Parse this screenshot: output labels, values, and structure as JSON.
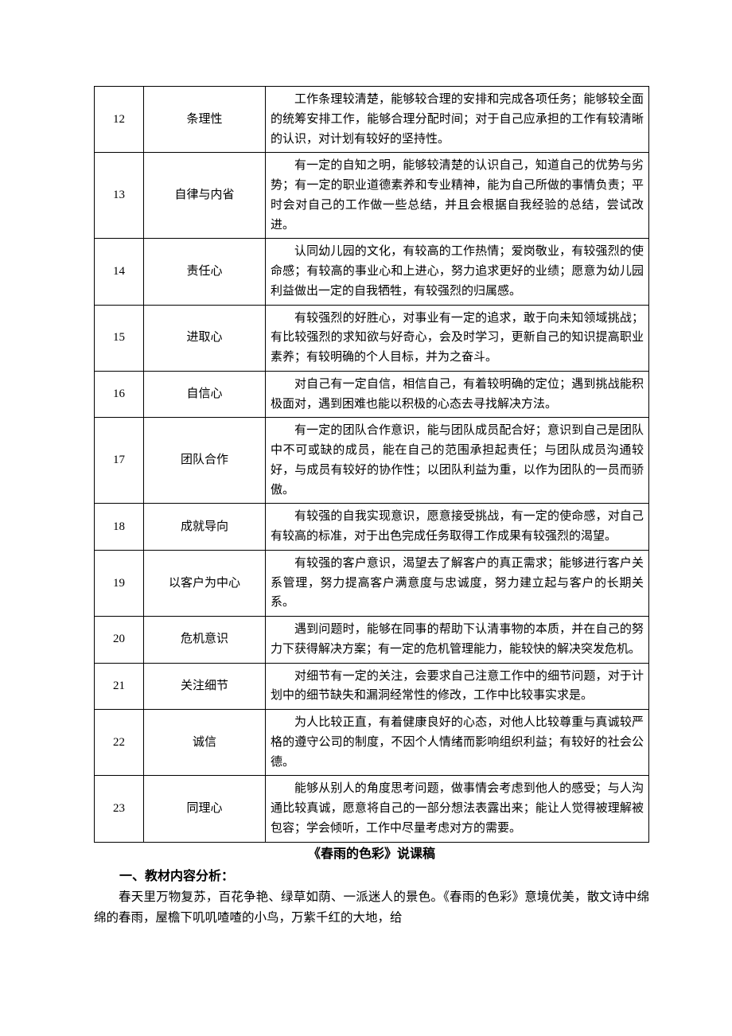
{
  "table": {
    "rows": [
      {
        "num": "12",
        "name": "条理性",
        "desc": "工作条理较清楚，能够较合理的安排和完成各项任务；能够较全面的统筹安排工作，能够合理分配时间；对于自己应承担的工作有较清晰的认识，对计划有较好的坚持性。"
      },
      {
        "num": "13",
        "name": "自律与内省",
        "desc": "有一定的自知之明，能够较清楚的认识自己，知道自己的优势与劣势；有一定的职业道德素养和专业精神，能为自己所做的事情负责；平时会对自己的工作做一些总结，并且会根据自我经验的总结，尝试改进。"
      },
      {
        "num": "14",
        "name": "责任心",
        "desc": "认同幼儿园的文化，有较高的工作热情；爱岗敬业，有较强烈的使命感；有较高的事业心和上进心，努力追求更好的业绩；愿意为幼儿园利益做出一定的自我牺牲，有较强烈的归属感。"
      },
      {
        "num": "15",
        "name": "进取心",
        "desc": "有较强烈的好胜心，对事业有一定的追求，敢于向未知领域挑战；有比较强烈的求知欲与好奇心，会及时学习，更新自己的知识提高职业素养；有较明确的个人目标，并为之奋斗。"
      },
      {
        "num": "16",
        "name": "自信心",
        "desc": "对自己有一定自信，相信自己，有着较明确的定位；遇到挑战能积极面对，遇到困难也能以积极的心态去寻找解决方法。"
      },
      {
        "num": "17",
        "name": "团队合作",
        "desc": "有一定的团队合作意识，能与团队成员配合好；意识到自己是团队中不可或缺的成员，能在自己的范围承担起责任；与团队成员沟通较好，与成员有较好的协作性；以团队利益为重，以作为团队的一员而骄傲。"
      },
      {
        "num": "18",
        "name": "成就导向",
        "desc": "有较强的自我实现意识，愿意接受挑战，有一定的使命感，对自己有较高的标准，对于出色完成任务取得工作成果有较强烈的渴望。"
      },
      {
        "num": "19",
        "name": "以客户为中心",
        "desc": "有较强的客户意识，渴望去了解客户的真正需求；能够进行客户关系管理，努力提高客户满意度与忠诚度，努力建立起与客户的长期关系。"
      },
      {
        "num": "20",
        "name": "危机意识",
        "desc": "遇到问题时，能够在同事的帮助下认清事物的本质，并在自己的努力下获得解决方案；有一定的危机管理能力，能较快的解决突发危机。"
      },
      {
        "num": "21",
        "name": "关注细节",
        "desc": "对细节有一定的关注，会要求自己注意工作中的细节问题，对于计划中的细节缺失和漏洞经常性的修改，工作中比较事实求是。"
      },
      {
        "num": "22",
        "name": "诚信",
        "desc": "为人比较正直，有着健康良好的心态，对他人比较尊重与真诚较严格的遵守公司的制度，不因个人情绪而影响组织利益；有较好的社会公德。"
      },
      {
        "num": "23",
        "name": "同理心",
        "desc": "能够从别人的角度思考问题，做事情会考虑到他人的感受；与人沟通比较真诚，愿意将自己的一部分想法表露出来；能让人觉得被理解被包容；学会倾听，工作中尽量考虑对方的需要。"
      }
    ]
  },
  "article": {
    "title": "《春雨的色彩》说课稿",
    "section_heading": "一、教材内容分析：",
    "paragraph": "春天里万物复苏，百花争艳、绿草如荫、一派迷人的景色。《春雨的色彩》意境优美，散文诗中绵绵的春雨，屋檐下叽叽喳喳的小鸟，万紫千红的大地，给"
  },
  "colors": {
    "text": "#000000",
    "border": "#000000",
    "background": "#ffffff"
  }
}
